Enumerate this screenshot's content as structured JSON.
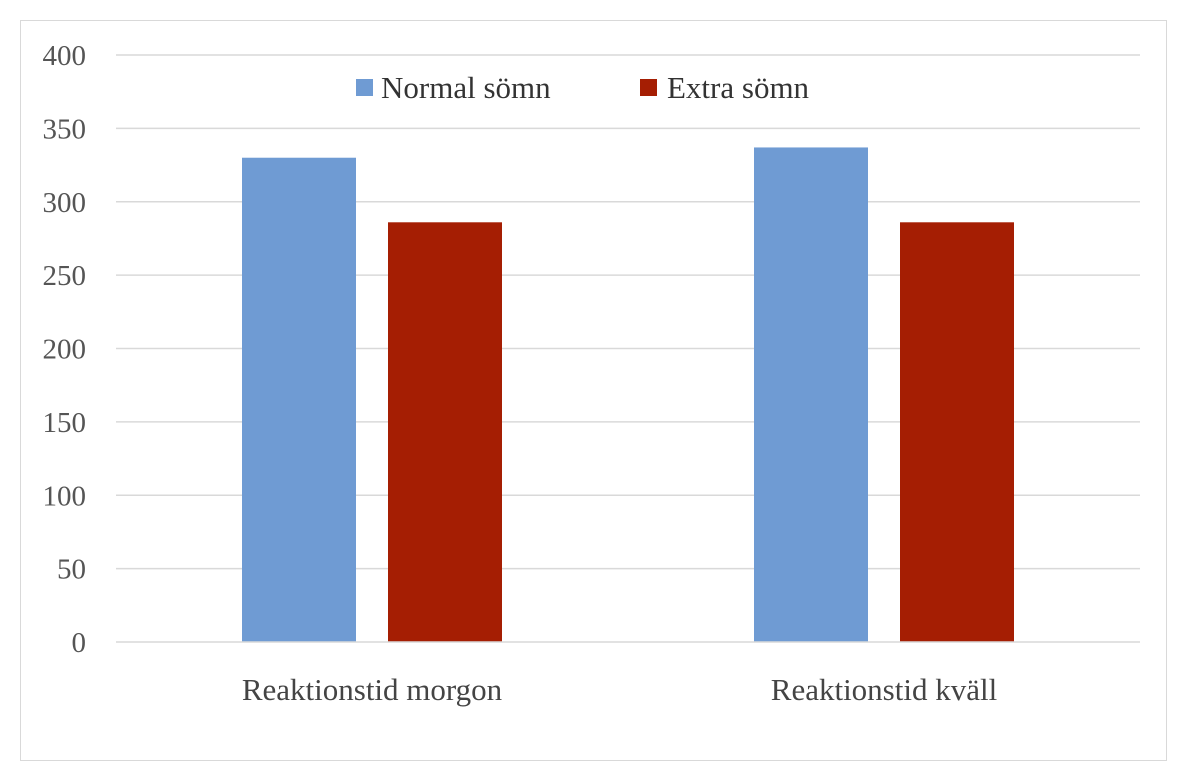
{
  "chart_data": {
    "type": "bar",
    "title": "",
    "xlabel": "",
    "ylabel": "",
    "categories": [
      "Reaktionstid morgon",
      "Reaktionstid kväll"
    ],
    "series": [
      {
        "name": "Normal sömn",
        "values": [
          330,
          337
        ],
        "color": "#6f9bd3"
      },
      {
        "name": "Extra sömn",
        "values": [
          286,
          286
        ],
        "color": "#a51e03"
      }
    ],
    "ylim": [
      0,
      400
    ],
    "yticks": [
      0,
      50,
      100,
      150,
      200,
      250,
      300,
      350,
      400
    ],
    "grid": true,
    "legend_position": "top-center"
  }
}
